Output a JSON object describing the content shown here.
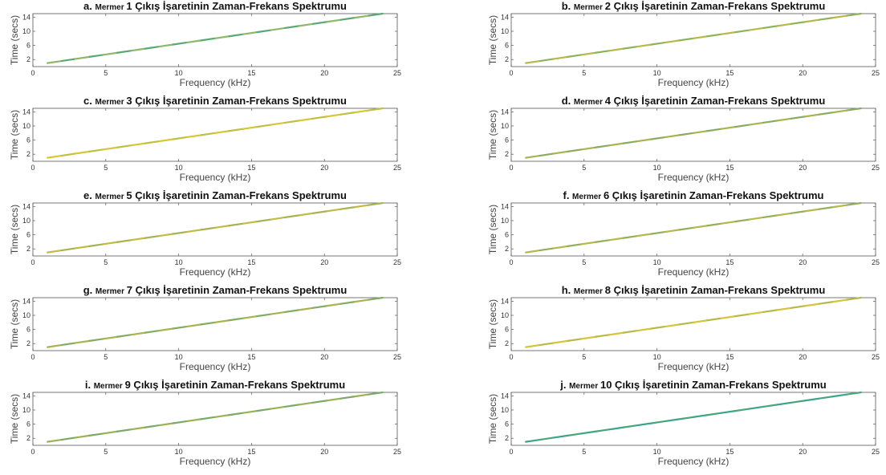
{
  "chart_data": [
    {
      "type": "line",
      "title_prefix": "a.",
      "title_small": "Mermer",
      "title_rest": "1 Çıkış İşaretinin Zaman-Frekans Spektrumu",
      "xlabel": "Frequency (kHz)",
      "ylabel": "Time (secs)",
      "xlim": [
        0,
        25
      ],
      "ylim": [
        0,
        15
      ],
      "xticks": [
        0,
        5,
        10,
        15,
        20,
        25
      ],
      "yticks": [
        2,
        6,
        10,
        14
      ],
      "series": [
        {
          "x": [
            1,
            24
          ],
          "y": [
            1,
            15
          ]
        }
      ],
      "line_colors": [
        "#8fb86a",
        "#5aa875"
      ]
    },
    {
      "type": "line",
      "title_prefix": "b.",
      "title_small": "Mermer",
      "title_rest": "2 Çıkış İşaretinin Zaman-Frekans Spektrumu",
      "xlabel": "Frequency (kHz)",
      "ylabel": "Time (secs)",
      "xlim": [
        0,
        25
      ],
      "ylim": [
        0,
        15
      ],
      "xticks": [
        0,
        5,
        10,
        15,
        20,
        25
      ],
      "yticks": [
        2,
        6,
        10,
        14
      ],
      "series": [
        {
          "x": [
            1,
            24
          ],
          "y": [
            1,
            15
          ]
        }
      ],
      "line_colors": [
        "#b9b94a",
        "#8db35c"
      ]
    },
    {
      "type": "line",
      "title_prefix": "c.",
      "title_small": "Mermer",
      "title_rest": "3 Çıkış İşaretinin Zaman-Frekans Spektrumu",
      "xlabel": "Frequency (kHz)",
      "ylabel": "Time (secs)",
      "xlim": [
        0,
        25
      ],
      "ylim": [
        0,
        15
      ],
      "xticks": [
        0,
        5,
        10,
        15,
        20,
        25
      ],
      "yticks": [
        2,
        6,
        10,
        14
      ],
      "series": [
        {
          "x": [
            1,
            24
          ],
          "y": [
            1,
            15
          ]
        }
      ],
      "line_colors": [
        "#d8c63a",
        "#c0c040"
      ]
    },
    {
      "type": "line",
      "title_prefix": "d.",
      "title_small": "Mermer",
      "title_rest": "4 Çıkış İşaretinin Zaman-Frekans Spektrumu",
      "xlabel": "Frequency (kHz)",
      "ylabel": "Time (secs)",
      "xlim": [
        0,
        25
      ],
      "ylim": [
        0,
        15
      ],
      "xticks": [
        0,
        5,
        10,
        15,
        20,
        25
      ],
      "yticks": [
        2,
        6,
        10,
        14
      ],
      "series": [
        {
          "x": [
            1,
            24
          ],
          "y": [
            1,
            15
          ]
        }
      ],
      "line_colors": [
        "#a7b552",
        "#8aab62"
      ]
    },
    {
      "type": "line",
      "title_prefix": "e.",
      "title_small": "Mermer",
      "title_rest": "5 Çıkış İşaretinin Zaman-Frekans Spektrumu",
      "xlabel": "Frequency (kHz)",
      "ylabel": "Time (secs)",
      "xlim": [
        0,
        25
      ],
      "ylim": [
        0,
        15
      ],
      "xticks": [
        0,
        5,
        10,
        15,
        20,
        25
      ],
      "yticks": [
        2,
        6,
        10,
        14
      ],
      "series": [
        {
          "x": [
            1,
            24
          ],
          "y": [
            1,
            15
          ]
        }
      ],
      "line_colors": [
        "#c3bb45",
        "#a7b252"
      ]
    },
    {
      "type": "line",
      "title_prefix": "f.",
      "title_small": "Mermer",
      "title_rest": "6 Çıkış İşaretinin Zaman-Frekans Spektrumu",
      "xlabel": "Frequency (kHz)",
      "ylabel": "Time (secs)",
      "xlim": [
        0,
        25
      ],
      "ylim": [
        0,
        15
      ],
      "xticks": [
        0,
        5,
        10,
        15,
        20,
        25
      ],
      "yticks": [
        2,
        6,
        10,
        14
      ],
      "series": [
        {
          "x": [
            1,
            24
          ],
          "y": [
            1,
            15
          ]
        }
      ],
      "line_colors": [
        "#b5b84c",
        "#95ae5a"
      ]
    },
    {
      "type": "line",
      "title_prefix": "g.",
      "title_small": "Mermer",
      "title_rest": "7 Çıkış İşaretinin Zaman-Frekans Spektrumu",
      "xlabel": "Frequency (kHz)",
      "ylabel": "Time (secs)",
      "xlim": [
        0,
        25
      ],
      "ylim": [
        0,
        15
      ],
      "xticks": [
        0,
        5,
        10,
        15,
        20,
        25
      ],
      "yticks": [
        2,
        6,
        10,
        14
      ],
      "series": [
        {
          "x": [
            1,
            24
          ],
          "y": [
            1,
            15
          ]
        }
      ],
      "line_colors": [
        "#a8b450",
        "#82ab64"
      ]
    },
    {
      "type": "line",
      "title_prefix": "h.",
      "title_small": "Mermer",
      "title_rest": "8 Çıkış İşaretinin Zaman-Frekans Spektrumu",
      "xlabel": "Frequency (kHz)",
      "ylabel": "Time (secs)",
      "xlim": [
        0,
        25
      ],
      "ylim": [
        0,
        15
      ],
      "xticks": [
        0,
        5,
        10,
        15,
        20,
        25
      ],
      "yticks": [
        2,
        6,
        10,
        14
      ],
      "series": [
        {
          "x": [
            1,
            24
          ],
          "y": [
            1,
            15
          ]
        }
      ],
      "line_colors": [
        "#d6c43a",
        "#b9b947"
      ]
    },
    {
      "type": "line",
      "title_prefix": "i.",
      "title_small": "Mermer",
      "title_rest": "9 Çıkış İşaretinin Zaman-Frekans Spektrumu",
      "xlabel": "Frequency (kHz)",
      "ylabel": "Time (secs)",
      "xlim": [
        0,
        25
      ],
      "ylim": [
        0,
        15
      ],
      "xticks": [
        0,
        5,
        10,
        15,
        20,
        25
      ],
      "yticks": [
        2,
        6,
        10,
        14
      ],
      "series": [
        {
          "x": [
            1,
            24
          ],
          "y": [
            1,
            15
          ]
        }
      ],
      "line_colors": [
        "#9cb256",
        "#7ba968"
      ]
    },
    {
      "type": "line",
      "title_prefix": "j.",
      "title_small": "Mermer",
      "title_rest": "10 Çıkış İşaretinin Zaman-Frekans Spektrumu",
      "xlabel": "Frequency (kHz)",
      "ylabel": "Time (secs)",
      "xlim": [
        0,
        25
      ],
      "ylim": [
        0,
        15
      ],
      "xticks": [
        0,
        5,
        10,
        15,
        20,
        25
      ],
      "yticks": [
        2,
        6,
        10,
        14
      ],
      "series": [
        {
          "x": [
            1,
            24
          ],
          "y": [
            1,
            15
          ]
        }
      ],
      "line_colors": [
        "#3aa58a",
        "#4aa67a"
      ]
    }
  ]
}
